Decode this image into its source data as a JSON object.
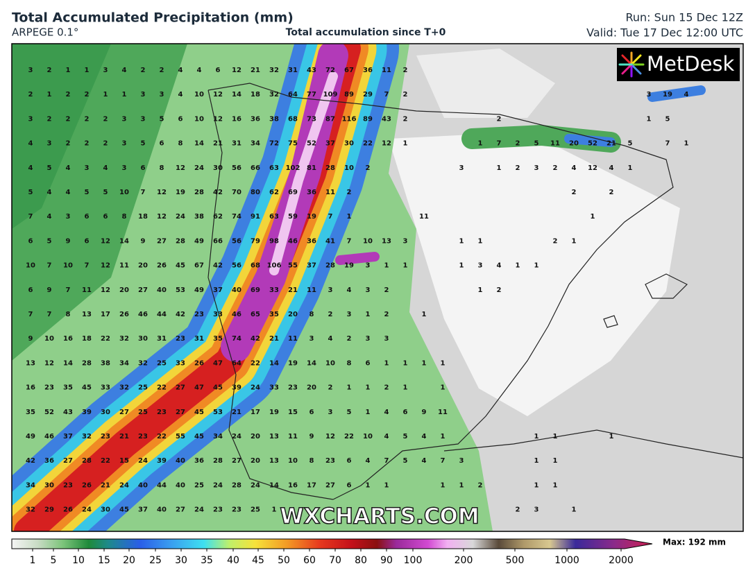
{
  "header": {
    "title": "Total Accumulated Precipitation (mm)",
    "model": "ARPEGE 0.1°",
    "subtitle": "Total accumulation since T+0",
    "run": "Run: Sun 15 Dec 12Z",
    "valid": "Valid: Tue 17 Dec 12:00 UTC"
  },
  "logo": "MetDesk",
  "watermark": "WXCHARTS.COM",
  "colorbar": {
    "ticks": [
      1,
      5,
      10,
      15,
      20,
      25,
      30,
      35,
      40,
      45,
      50,
      60,
      70,
      80,
      90,
      100,
      200,
      500,
      1000,
      2000
    ],
    "max_label": "Max: 192 mm"
  },
  "grid": {
    "rows": [
      [
        3,
        2,
        1,
        1,
        3,
        4,
        2,
        2,
        4,
        4,
        6,
        12,
        21,
        32,
        31,
        43,
        72,
        67,
        36,
        11,
        2,
        null,
        null,
        null,
        null,
        null,
        null,
        null,
        null,
        null,
        null,
        null,
        null,
        null,
        null,
        null
      ],
      [
        2,
        1,
        2,
        2,
        1,
        1,
        3,
        3,
        4,
        10,
        12,
        14,
        18,
        32,
        64,
        77,
        109,
        89,
        29,
        7,
        2,
        null,
        null,
        null,
        null,
        null,
        null,
        null,
        null,
        null,
        null,
        null,
        null,
        3,
        19,
        4
      ],
      [
        3,
        2,
        2,
        2,
        2,
        3,
        3,
        5,
        6,
        10,
        12,
        16,
        36,
        38,
        68,
        73,
        87,
        116,
        89,
        43,
        2,
        null,
        null,
        null,
        null,
        2,
        null,
        null,
        null,
        null,
        null,
        null,
        null,
        1,
        5,
        null
      ],
      [
        4,
        3,
        2,
        2,
        2,
        3,
        5,
        6,
        8,
        14,
        21,
        31,
        34,
        72,
        75,
        52,
        37,
        30,
        22,
        12,
        1,
        null,
        null,
        null,
        1,
        7,
        2,
        5,
        11,
        20,
        52,
        21,
        5,
        null,
        7,
        1
      ],
      [
        4,
        5,
        4,
        3,
        4,
        3,
        6,
        8,
        12,
        24,
        30,
        56,
        66,
        63,
        102,
        81,
        28,
        10,
        2,
        null,
        null,
        null,
        null,
        3,
        null,
        1,
        2,
        3,
        2,
        4,
        12,
        4,
        1,
        null,
        null,
        null
      ],
      [
        5,
        4,
        4,
        5,
        5,
        10,
        7,
        12,
        19,
        28,
        42,
        70,
        80,
        62,
        69,
        36,
        11,
        2,
        null,
        null,
        null,
        null,
        null,
        null,
        null,
        null,
        null,
        null,
        null,
        2,
        null,
        2,
        null,
        null,
        null,
        null
      ],
      [
        7,
        4,
        3,
        6,
        6,
        8,
        18,
        12,
        24,
        38,
        62,
        74,
        91,
        63,
        59,
        19,
        7,
        1,
        null,
        null,
        null,
        11,
        null,
        null,
        null,
        null,
        null,
        null,
        null,
        null,
        1,
        null,
        null,
        null,
        null,
        null
      ],
      [
        6,
        5,
        9,
        6,
        12,
        14,
        9,
        27,
        28,
        49,
        66,
        56,
        79,
        98,
        46,
        36,
        41,
        7,
        10,
        13,
        3,
        null,
        null,
        1,
        1,
        null,
        null,
        null,
        2,
        1,
        null,
        null,
        null,
        null,
        null,
        null
      ],
      [
        10,
        7,
        10,
        7,
        12,
        11,
        20,
        26,
        45,
        67,
        42,
        56,
        68,
        106,
        55,
        37,
        28,
        19,
        3,
        1,
        1,
        null,
        null,
        1,
        3,
        4,
        1,
        1,
        null,
        null,
        null,
        null,
        null,
        null,
        null,
        null
      ],
      [
        6,
        9,
        7,
        11,
        12,
        20,
        27,
        40,
        53,
        49,
        37,
        40,
        69,
        33,
        21,
        11,
        3,
        4,
        3,
        2,
        null,
        null,
        null,
        null,
        1,
        2,
        null,
        null,
        null,
        null,
        null,
        null,
        null,
        null,
        null,
        null
      ],
      [
        7,
        7,
        8,
        13,
        17,
        26,
        46,
        44,
        42,
        23,
        33,
        46,
        65,
        35,
        20,
        8,
        2,
        3,
        1,
        2,
        null,
        1,
        null,
        null,
        null,
        null,
        null,
        null,
        null,
        null,
        null,
        null,
        null,
        null,
        null,
        null
      ],
      [
        9,
        10,
        16,
        18,
        22,
        32,
        30,
        31,
        23,
        31,
        35,
        74,
        42,
        21,
        11,
        3,
        4,
        2,
        3,
        3,
        null,
        null,
        null,
        null,
        null,
        null,
        null,
        null,
        null,
        null,
        null,
        null,
        null,
        null,
        null,
        null
      ],
      [
        13,
        12,
        14,
        28,
        38,
        34,
        32,
        25,
        33,
        26,
        47,
        64,
        22,
        14,
        19,
        14,
        10,
        8,
        6,
        1,
        1,
        1,
        1,
        null,
        null,
        null,
        null,
        null,
        null,
        null,
        null,
        null,
        null,
        null,
        null,
        null
      ],
      [
        16,
        23,
        35,
        45,
        33,
        32,
        25,
        22,
        27,
        47,
        45,
        39,
        24,
        33,
        23,
        20,
        2,
        1,
        1,
        2,
        1,
        null,
        1,
        null,
        null,
        null,
        null,
        null,
        null,
        null,
        null,
        null,
        null,
        null,
        null,
        null
      ],
      [
        35,
        52,
        43,
        39,
        30,
        27,
        25,
        23,
        27,
        45,
        53,
        21,
        17,
        19,
        15,
        6,
        3,
        5,
        1,
        4,
        6,
        9,
        11,
        null,
        null,
        null,
        null,
        null,
        null,
        null,
        null,
        null,
        null,
        null,
        null,
        null
      ],
      [
        49,
        46,
        37,
        32,
        23,
        21,
        23,
        22,
        55,
        45,
        34,
        24,
        20,
        13,
        11,
        9,
        12,
        22,
        10,
        4,
        5,
        4,
        1,
        null,
        null,
        null,
        null,
        1,
        1,
        null,
        null,
        1,
        null,
        null,
        null,
        null
      ],
      [
        42,
        36,
        27,
        28,
        22,
        15,
        24,
        39,
        40,
        36,
        28,
        27,
        20,
        13,
        10,
        8,
        23,
        6,
        4,
        7,
        5,
        4,
        7,
        3,
        null,
        null,
        null,
        1,
        1,
        null,
        null,
        null,
        null,
        null,
        null,
        null
      ],
      [
        34,
        30,
        23,
        26,
        21,
        24,
        40,
        44,
        40,
        25,
        24,
        28,
        24,
        14,
        16,
        17,
        27,
        6,
        1,
        1,
        null,
        null,
        1,
        1,
        2,
        null,
        null,
        1,
        1,
        null,
        null,
        null,
        null,
        null,
        null,
        null
      ],
      [
        32,
        29,
        26,
        24,
        30,
        45,
        37,
        40,
        27,
        24,
        23,
        23,
        25,
        1,
        null,
        null,
        null,
        null,
        null,
        null,
        null,
        null,
        null,
        null,
        null,
        null,
        2,
        3,
        null,
        1,
        null,
        null,
        null,
        null,
        null,
        null
      ]
    ]
  }
}
